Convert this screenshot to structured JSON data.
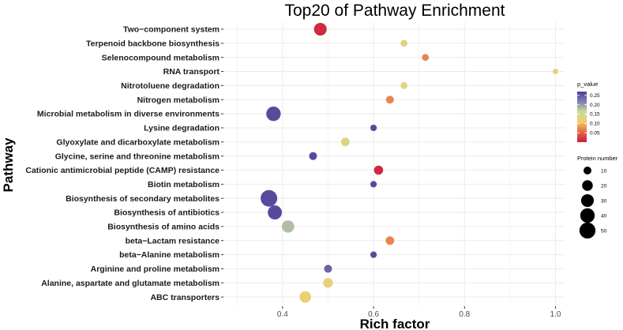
{
  "chart_data": {
    "type": "scatter",
    "title": "Top20 of Pathway Enrichment",
    "xlabel": "Rich factor",
    "ylabel": "Pathway",
    "xlim": [
      0.27,
      1.02
    ],
    "x_ticks": [
      0.4,
      0.6,
      0.8,
      1.0
    ],
    "x_tick_labels": [
      "0.4",
      "0.6",
      "0.8",
      "1.0"
    ],
    "grid": true,
    "categories": [
      "Two−component system",
      "Terpenoid backbone biosynthesis",
      "Selenocompound metabolism",
      "RNA transport",
      "Nitrotoluene degradation",
      "Nitrogen metabolism",
      "Microbial metabolism in diverse environments",
      "Lysine degradation",
      "Glyoxylate and dicarboxylate metabolism",
      "Glycine, serine and threonine metabolism",
      "Cationic antimicrobial peptide (CAMP) resistance",
      "Biotin metabolism",
      "Biosynthesis of secondary metabolites",
      "Biosynthesis of antibiotics",
      "Biosynthesis of amino acids",
      "beta−Lactam resistance",
      "beta−Alanine metabolism",
      "Arginine and proline metabolism",
      "Alanine, aspartate and glutamate metabolism",
      "ABC transporters"
    ],
    "points": [
      {
        "pathway": "Two−component system",
        "rich_factor": 0.483,
        "p_value": 0.01,
        "protein_number": 30
      },
      {
        "pathway": "Terpenoid backbone biosynthesis",
        "rich_factor": 0.667,
        "p_value": 0.13,
        "protein_number": 7
      },
      {
        "pathway": "Selenocompound metabolism",
        "rich_factor": 0.714,
        "p_value": 0.07,
        "protein_number": 7
      },
      {
        "pathway": "RNA transport",
        "rich_factor": 1.0,
        "p_value": 0.13,
        "protein_number": 4
      },
      {
        "pathway": "Nitrotoluene degradation",
        "rich_factor": 0.667,
        "p_value": 0.13,
        "protein_number": 7
      },
      {
        "pathway": "Nitrogen metabolism",
        "rich_factor": 0.636,
        "p_value": 0.07,
        "protein_number": 10
      },
      {
        "pathway": "Microbial metabolism in diverse environments",
        "rich_factor": 0.38,
        "p_value": 0.26,
        "protein_number": 40
      },
      {
        "pathway": "Lysine degradation",
        "rich_factor": 0.6,
        "p_value": 0.26,
        "protein_number": 6
      },
      {
        "pathway": "Glyoxylate and dicarboxylate metabolism",
        "rich_factor": 0.538,
        "p_value": 0.13,
        "protein_number": 12
      },
      {
        "pathway": "Glycine, serine and threonine metabolism",
        "rich_factor": 0.467,
        "p_value": 0.26,
        "protein_number": 10
      },
      {
        "pathway": "Cationic antimicrobial peptide (CAMP) resistance",
        "rich_factor": 0.611,
        "p_value": 0.01,
        "protein_number": 14
      },
      {
        "pathway": "Biotin metabolism",
        "rich_factor": 0.6,
        "p_value": 0.26,
        "protein_number": 6
      },
      {
        "pathway": "Biosynthesis of secondary metabolites",
        "rich_factor": 0.37,
        "p_value": 0.26,
        "protein_number": 54
      },
      {
        "pathway": "Biosynthesis of antibiotics",
        "rich_factor": 0.383,
        "p_value": 0.26,
        "protein_number": 38
      },
      {
        "pathway": "Biosynthesis of amino acids",
        "rich_factor": 0.412,
        "p_value": 0.18,
        "protein_number": 28
      },
      {
        "pathway": "beta−Lactam resistance",
        "rich_factor": 0.636,
        "p_value": 0.07,
        "protein_number": 12
      },
      {
        "pathway": "beta−Alanine metabolism",
        "rich_factor": 0.6,
        "p_value": 0.26,
        "protein_number": 6
      },
      {
        "pathway": "Arginine and proline metabolism",
        "rich_factor": 0.5,
        "p_value": 0.24,
        "protein_number": 10
      },
      {
        "pathway": "Alanine, aspartate and glutamate metabolism",
        "rich_factor": 0.5,
        "p_value": 0.12,
        "protein_number": 16
      },
      {
        "pathway": "ABC transporters",
        "rich_factor": 0.45,
        "p_value": 0.12,
        "protein_number": 24
      }
    ],
    "color_legend": {
      "title": "p_value",
      "range": [
        0.0,
        0.27
      ],
      "ticks": [
        0.05,
        0.1,
        0.15,
        0.2,
        0.25
      ],
      "tick_labels": [
        "0.05",
        "0.10",
        "0.15",
        "0.20",
        "0.25"
      ],
      "colors_low_to_high": [
        "#c81d3d",
        "#e46746",
        "#f2cc6b",
        "#c8dd98",
        "#7f7fb6",
        "#4d3f95"
      ]
    },
    "size_legend": {
      "title": "Protein number",
      "values": [
        10,
        20,
        30,
        40,
        50
      ],
      "labels": [
        "10",
        "20",
        "30",
        "40",
        "50"
      ]
    },
    "panel_background": "#ffffff",
    "grid_color": "#ebebeb"
  }
}
